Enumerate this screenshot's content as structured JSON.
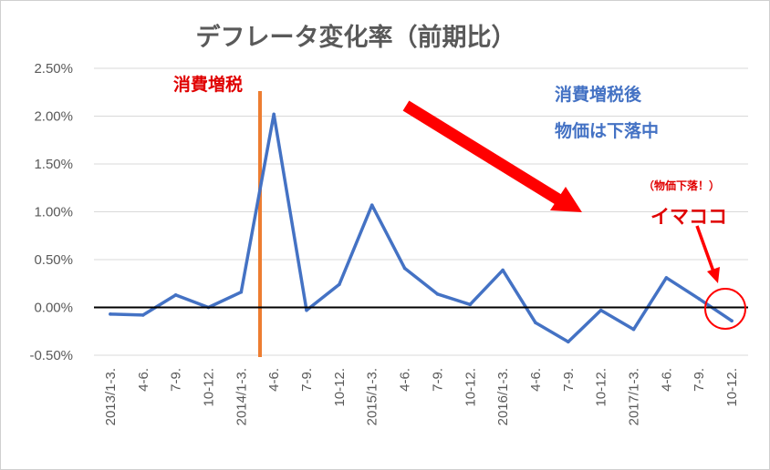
{
  "chart_data": {
    "type": "line",
    "title": "デフレータ変化率（前期比）",
    "xlabel": "",
    "ylabel": "",
    "categories": [
      "2013/1-3.",
      "4-6.",
      "7-9.",
      "10-12.",
      "2014/1-3.",
      "4-6.",
      "7-9.",
      "10-12.",
      "2015/1-3.",
      "4-6.",
      "7-9.",
      "10-12.",
      "2016/1-3.",
      "4-6.",
      "7-9.",
      "10-12.",
      "2017/1-3.",
      "4-6.",
      "7-9.",
      "10-12."
    ],
    "y_ticks": [
      "2.50%",
      "2.00%",
      "1.50%",
      "1.00%",
      "0.50%",
      "0.00%",
      "-0.50%"
    ],
    "ylim": [
      -0.5,
      2.5
    ],
    "series": [
      {
        "values": [
          -0.07,
          -0.08,
          0.13,
          0.0,
          0.16,
          2.02,
          -0.03,
          0.24,
          1.07,
          0.41,
          0.14,
          0.03,
          0.39,
          -0.16,
          -0.36,
          -0.03,
          -0.23,
          0.31,
          0.09,
          -0.14
        ]
      }
    ],
    "grid": true,
    "annotations": {
      "tax_hike_label": "消費増税",
      "after_tax_line1": "消費増税後",
      "after_tax_line2": "物価は下落中",
      "price_falling_note": "（物価下落！）",
      "here_label": "イマココ"
    },
    "colors": {
      "series": "#4472c4",
      "tax_line": "#ed7d31",
      "arrow": "#ff0000",
      "annotation_red": "#e00000",
      "annotation_blue": "#4472c4",
      "grid": "#d9d9d9",
      "zero_line": "#000000"
    }
  }
}
